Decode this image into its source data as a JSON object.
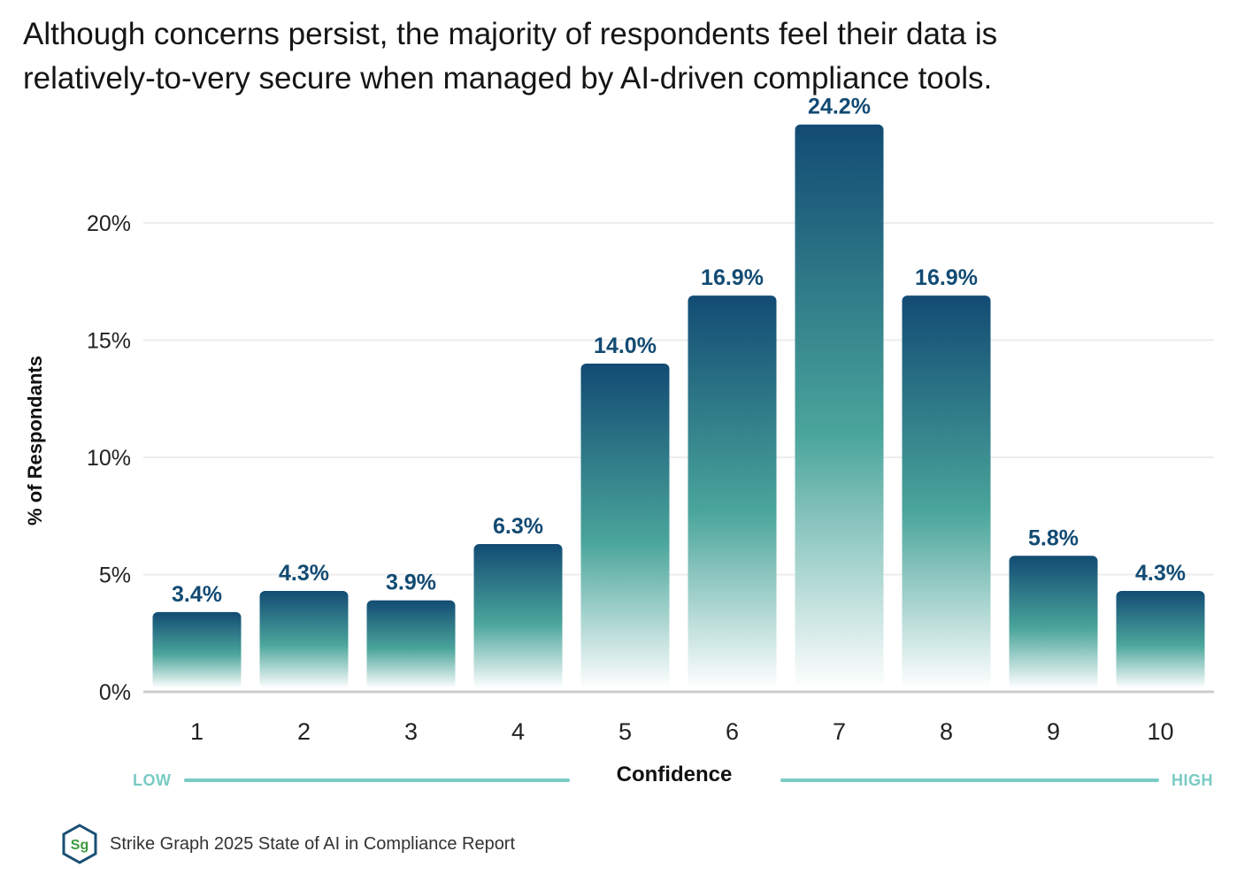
{
  "title_line1": "Although concerns persist, the majority of respondents feel their data is",
  "title_line2": "relatively-to-very secure when managed by AI-driven compliance tools.",
  "colors": {
    "bar_top": "#124b73",
    "bar_mid": "#4aa59b",
    "label": "#124b73",
    "scale_line": "#79cbc4",
    "scale_text": "#79cbc4",
    "grid": "#ececec",
    "axis": "#cccccc",
    "logo_ring": "#1a4f74",
    "logo_text": "#3b9a3f"
  },
  "chart_data": {
    "type": "bar",
    "title": "Although concerns persist, the majority of respondents feel their data is relatively-to-very secure when managed by AI-driven compliance tools.",
    "xlabel": "Confidence",
    "ylabel": "% of Respondants",
    "categories": [
      "1",
      "2",
      "3",
      "4",
      "5",
      "6",
      "7",
      "8",
      "9",
      "10"
    ],
    "values": [
      3.4,
      4.3,
      3.9,
      6.3,
      14.0,
      16.9,
      24.2,
      16.9,
      5.8,
      4.3
    ],
    "value_labels": [
      "3.4%",
      "4.3%",
      "3.9%",
      "6.3%",
      "14.0%",
      "16.9%",
      "24.2%",
      "16.9%",
      "5.8%",
      "4.3%"
    ],
    "yticks": [
      0,
      5,
      10,
      15,
      20
    ],
    "ytick_labels": [
      "0%",
      "5%",
      "10%",
      "15%",
      "20%"
    ],
    "ylim": [
      0,
      25
    ],
    "grid": true,
    "scale_low": "LOW",
    "scale_high": "HIGH"
  },
  "footer": {
    "logo_text": "Sg",
    "source": "Strike Graph 2025 State of AI in Compliance Report"
  }
}
